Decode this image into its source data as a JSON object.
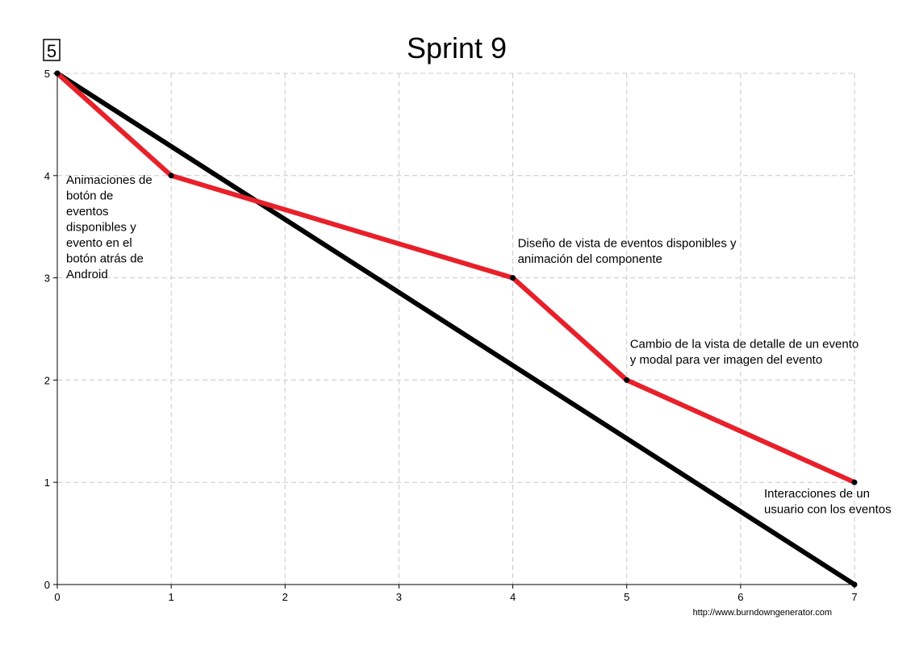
{
  "chart_data": {
    "type": "line",
    "title": "Sprint 9",
    "badge": "5",
    "xlabel": "",
    "ylabel": "",
    "xlim": [
      0,
      7
    ],
    "ylim": [
      0,
      5
    ],
    "x_ticks": [
      0,
      1,
      2,
      3,
      4,
      5,
      6,
      7
    ],
    "y_ticks": [
      0,
      1,
      2,
      3,
      4,
      5
    ],
    "grid": true,
    "series": [
      {
        "color": "#000000",
        "x": [
          0,
          7
        ],
        "y": [
          5,
          0
        ]
      },
      {
        "color": "#e8202a",
        "x": [
          0,
          1,
          4,
          5,
          7
        ],
        "y": [
          5,
          4,
          3,
          2,
          1
        ]
      }
    ],
    "annotations": [
      {
        "x": 1,
        "y": 4,
        "lines": [
          "Animaciones de",
          "botón de",
          "eventos",
          "disponibles y",
          "evento en el",
          "botón atrás de",
          "Android"
        ]
      },
      {
        "x": 4,
        "y": 3,
        "lines": [
          "Diseño de vista de eventos disponibles y",
          "animación del componente"
        ]
      },
      {
        "x": 5,
        "y": 2,
        "lines": [
          "Cambio de la vista de detalle de un evento",
          "y modal para ver imagen del evento"
        ]
      },
      {
        "x": 7,
        "y": 1,
        "lines": [
          "Interacciones de un",
          "usuario con los eventos"
        ]
      }
    ],
    "footer": "http://www.burndowngenerator.com"
  }
}
